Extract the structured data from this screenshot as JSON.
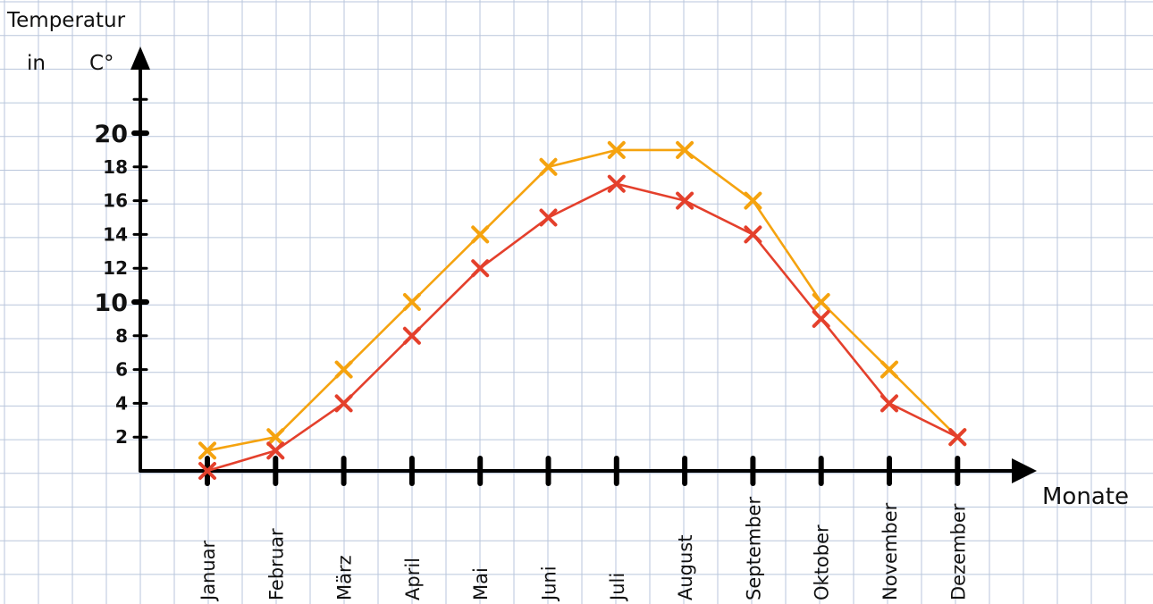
{
  "chart_data": {
    "type": "line",
    "ylabel_line1": "Temperatur",
    "ylabel_line2": "in",
    "ylabel_unit": "C°",
    "xlabel": "Monate",
    "categories": [
      "Januar",
      "Februar",
      "März",
      "April",
      "Mai",
      "Juni",
      "Juli",
      "August",
      "September",
      "Oktober",
      "November",
      "Dezember"
    ],
    "yticks": [
      "2",
      "4",
      "6",
      "8",
      "10",
      "12",
      "14",
      "16",
      "18",
      "20"
    ],
    "ylim": [
      0,
      20
    ],
    "grid": true,
    "legend": "none",
    "series": [
      {
        "color": "#f5a30f",
        "marker": "x",
        "values": [
          1.2,
          2,
          6,
          10,
          14,
          18,
          19,
          19,
          16,
          10,
          6,
          2
        ]
      },
      {
        "color": "#e4402c",
        "marker": "x",
        "values": [
          0,
          1.2,
          4,
          8,
          12,
          15,
          17,
          16,
          14,
          9,
          4,
          2
        ]
      }
    ]
  }
}
